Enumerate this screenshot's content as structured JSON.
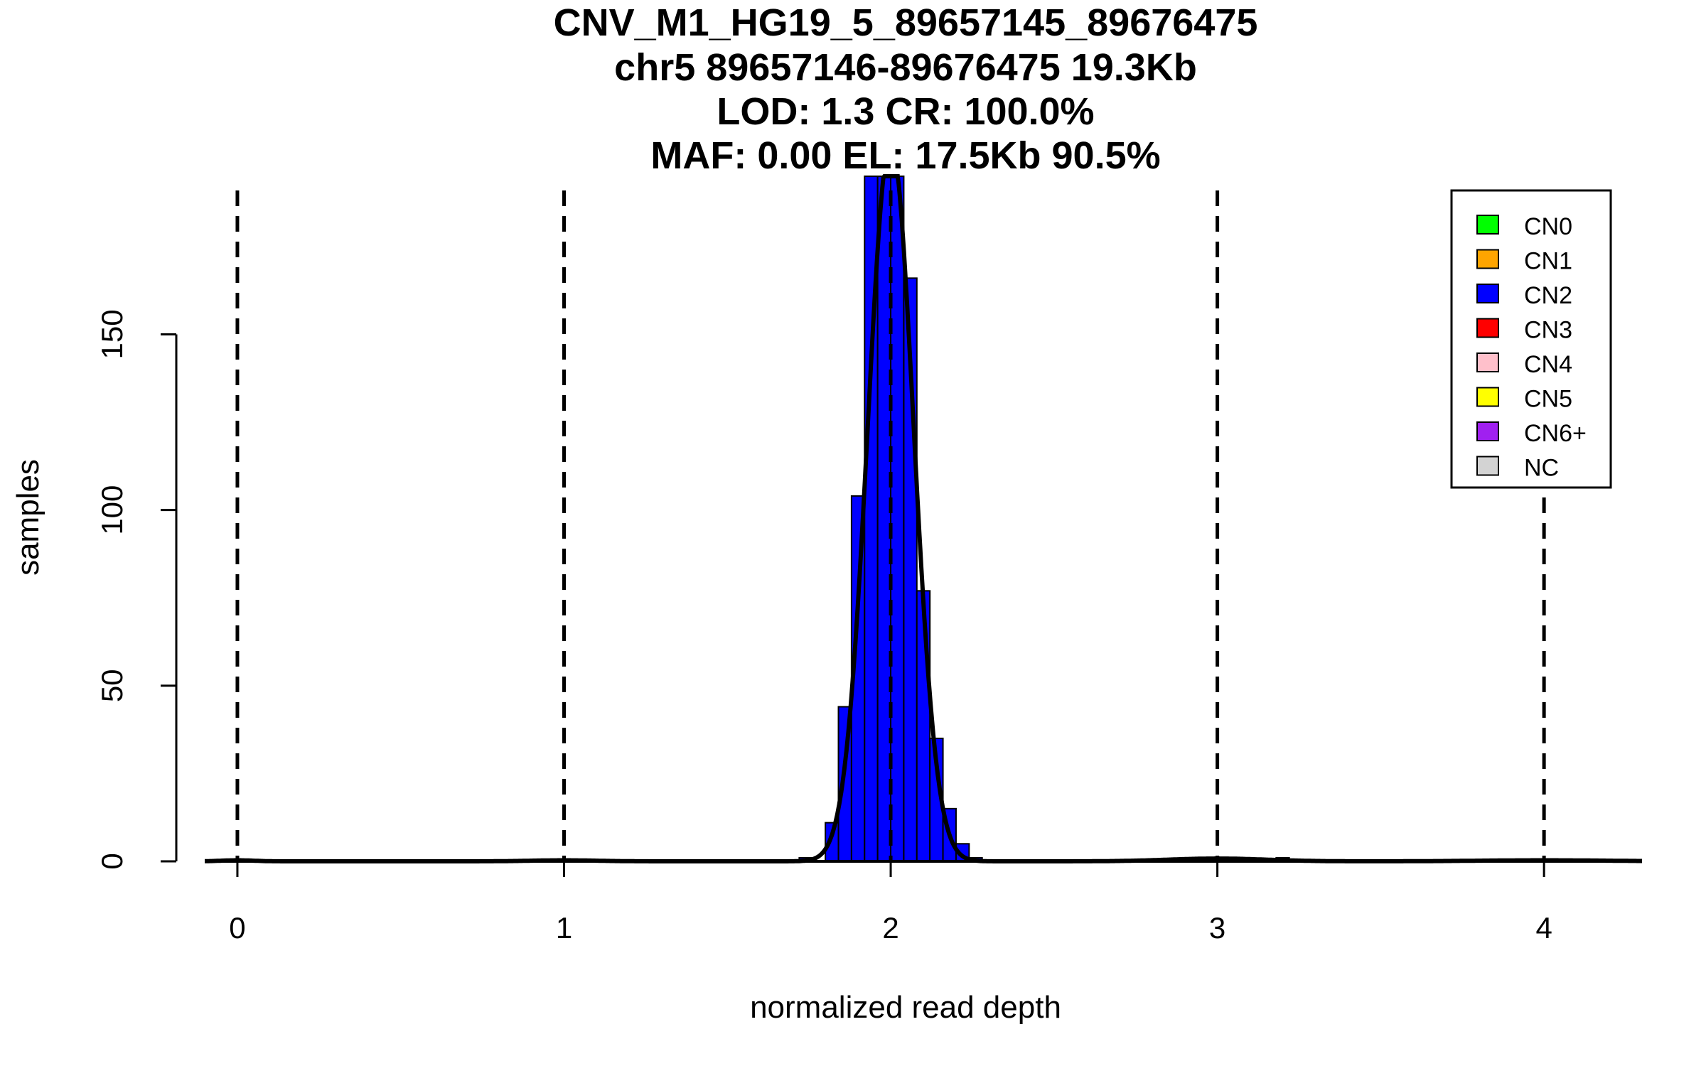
{
  "title_lines": [
    "CNV_M1_HG19_5_89657145_89676475",
    "chr5 89657146-89676475 19.3Kb",
    "LOD: 1.3 CR: 100.0%",
    "MAF: 0.00 EL: 17.5Kb 90.5%"
  ],
  "legend": [
    {
      "label": "CN0",
      "color": "#00ff00"
    },
    {
      "label": "CN1",
      "color": "#ffa500"
    },
    {
      "label": "CN2",
      "color": "#0000ff"
    },
    {
      "label": "CN3",
      "color": "#ff0000"
    },
    {
      "label": "CN4",
      "color": "#ffc0cb"
    },
    {
      "label": "CN5",
      "color": "#ffff00"
    },
    {
      "label": "CN6+",
      "color": "#a020f0"
    },
    {
      "label": "NC",
      "color": "#d3d3d3"
    }
  ],
  "chart_data": {
    "type": "bar",
    "xlabel": "normalized read depth",
    "ylabel": "samples",
    "xlim": [
      -0.1,
      4.3
    ],
    "ylim": [
      0,
      195
    ],
    "x_ticks": [
      0,
      1,
      2,
      3,
      4
    ],
    "y_ticks": [
      0,
      50,
      100,
      150
    ],
    "vlines": [
      0,
      1,
      2,
      3,
      4
    ],
    "bin_width": 0.04,
    "bins": [
      {
        "x0": 1.72,
        "count": 1
      },
      {
        "x0": 1.8,
        "count": 11
      },
      {
        "x0": 1.84,
        "count": 44
      },
      {
        "x0": 1.88,
        "count": 104
      },
      {
        "x0": 1.92,
        "count": 195
      },
      {
        "x0": 1.96,
        "count": 195
      },
      {
        "x0": 2.0,
        "count": 195
      },
      {
        "x0": 2.04,
        "count": 166
      },
      {
        "x0": 2.08,
        "count": 77
      },
      {
        "x0": 2.12,
        "count": 35
      },
      {
        "x0": 2.16,
        "count": 15
      },
      {
        "x0": 2.2,
        "count": 5
      },
      {
        "x0": 2.24,
        "count": 1
      },
      {
        "x0": 3.18,
        "count": 1
      }
    ],
    "bar_color": "#0000ff",
    "density_curves": [
      {
        "mean": 0,
        "sd": 0.05,
        "peak": 0.3
      },
      {
        "mean": 1,
        "sd": 0.1,
        "peak": 0.3
      },
      {
        "mean": 2,
        "sd": 0.07,
        "peak": 205
      },
      {
        "mean": 3,
        "sd": 0.15,
        "peak": 0.8
      },
      {
        "mean": 4,
        "sd": 0.2,
        "peak": 0.3
      }
    ]
  }
}
